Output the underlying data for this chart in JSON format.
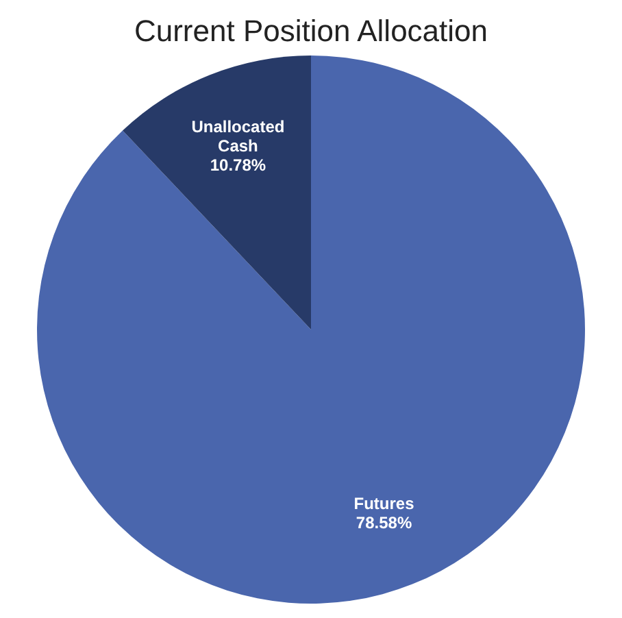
{
  "chart_data": {
    "type": "pie",
    "title": "Current Position Allocation",
    "categories": [
      "Futures",
      "Unallocated Cash"
    ],
    "values": [
      78.58,
      10.78
    ],
    "value_labels": [
      "78.58%",
      "10.78%"
    ],
    "colors": [
      "#4a66ad",
      "#273a68"
    ]
  }
}
